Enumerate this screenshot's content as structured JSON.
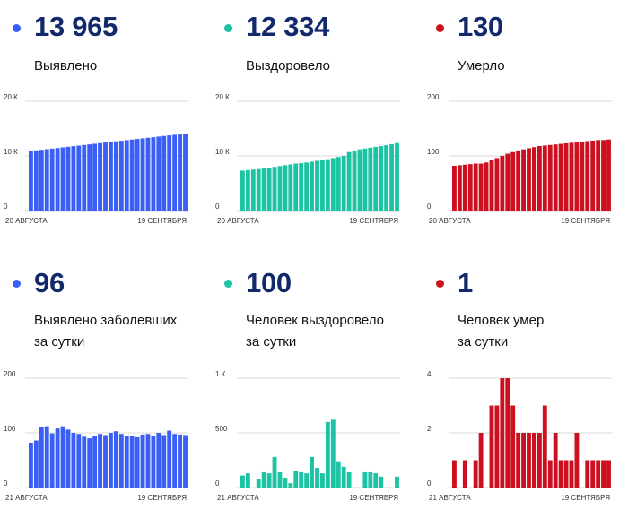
{
  "panels": [
    {
      "value": "13 965",
      "label": [
        "Выявлено"
      ],
      "color": "#3b5ff5",
      "chart_data": {
        "type": "bar",
        "x_start_label": "20 АВГУСТА",
        "x_end_label": "19 СЕНТЯБРЯ",
        "ylim": [
          0,
          20000
        ],
        "yticks": [
          {
            "v": 0,
            "t": "0"
          },
          {
            "v": 10000,
            "t": "10 К"
          },
          {
            "v": 20000,
            "t": "20 К"
          }
        ],
        "values": [
          10900,
          11010,
          11120,
          11230,
          11340,
          11450,
          11560,
          11670,
          11780,
          11890,
          12000,
          12110,
          12220,
          12330,
          12440,
          12550,
          12660,
          12770,
          12880,
          12990,
          13100,
          13210,
          13320,
          13430,
          13540,
          13650,
          13760,
          13860,
          13920,
          13965
        ]
      }
    },
    {
      "value": "12 334",
      "label": [
        "Выздоровело"
      ],
      "color": "#1cc4a4",
      "chart_data": {
        "type": "bar",
        "x_start_label": "20 АВГУСТА",
        "x_end_label": "19 СЕНТЯБРЯ",
        "ylim": [
          0,
          20000
        ],
        "yticks": [
          {
            "v": 0,
            "t": "0"
          },
          {
            "v": 10000,
            "t": "10 К"
          },
          {
            "v": 20000,
            "t": "20 К"
          }
        ],
        "values": [
          7300,
          7400,
          7500,
          7600,
          7700,
          7850,
          8000,
          8150,
          8300,
          8450,
          8600,
          8700,
          8800,
          8950,
          9100,
          9250,
          9400,
          9600,
          9800,
          10000,
          10700,
          11000,
          11200,
          11350,
          11500,
          11650,
          11800,
          11950,
          12150,
          12334
        ]
      }
    },
    {
      "value": "130",
      "label": [
        "Умерло"
      ],
      "color": "#cc1020",
      "chart_data": {
        "type": "bar",
        "x_start_label": "20 АВГУСТА",
        "x_end_label": "19 СЕНТЯБРЯ",
        "ylim": [
          0,
          200
        ],
        "yticks": [
          {
            "v": 0,
            "t": "0"
          },
          {
            "v": 100,
            "t": "100"
          },
          {
            "v": 200,
            "t": "200"
          }
        ],
        "values": [
          82,
          83,
          84,
          85,
          86,
          86,
          88,
          92,
          96,
          100,
          104,
          107,
          110,
          112,
          114,
          116,
          118,
          119,
          120,
          121,
          122,
          123,
          124,
          125,
          126,
          127,
          128,
          129,
          129,
          130
        ]
      }
    },
    {
      "value": "96",
      "label": [
        "Выявлено заболевших",
        "за сутки"
      ],
      "color": "#3b5ff5",
      "chart_data": {
        "type": "bar",
        "x_start_label": "21 АВГУСТА",
        "x_end_label": "19 СЕНТЯБРЯ",
        "ylim": [
          0,
          200
        ],
        "yticks": [
          {
            "v": 0,
            "t": "0"
          },
          {
            "v": 100,
            "t": "100"
          },
          {
            "v": 200,
            "t": "200"
          }
        ],
        "values": [
          82,
          86,
          110,
          112,
          99,
          108,
          112,
          106,
          100,
          98,
          93,
          90,
          94,
          98,
          96,
          100,
          103,
          98,
          95,
          94,
          92,
          97,
          98,
          95,
          100,
          96,
          104,
          98,
          97,
          96
        ]
      }
    },
    {
      "value": "100",
      "label": [
        "Человек выздоровело",
        "за сутки"
      ],
      "color": "#1cc4a4",
      "chart_data": {
        "type": "bar",
        "x_start_label": "21 АВГУСТА",
        "x_end_label": "19 СЕНТЯБРЯ",
        "ylim": [
          0,
          1000
        ],
        "yticks": [
          {
            "v": 0,
            "t": "0"
          },
          {
            "v": 500,
            "t": "500"
          },
          {
            "v": 1000,
            "t": "1 К"
          }
        ],
        "values": [
          110,
          130,
          0,
          80,
          140,
          130,
          280,
          140,
          90,
          40,
          150,
          140,
          130,
          280,
          180,
          130,
          600,
          620,
          240,
          190,
          140,
          0,
          0,
          140,
          140,
          130,
          100,
          0,
          0,
          100
        ]
      }
    },
    {
      "value": "1",
      "label": [
        "Человек умер",
        "за сутки"
      ],
      "color": "#cc1020",
      "chart_data": {
        "type": "bar",
        "x_start_label": "21 АВГУСТА",
        "x_end_label": "19 СЕНТЯБРЯ",
        "ylim": [
          0,
          4
        ],
        "yticks": [
          {
            "v": 0,
            "t": "0"
          },
          {
            "v": 2,
            "t": "2"
          },
          {
            "v": 4,
            "t": "4"
          }
        ],
        "values": [
          1,
          0,
          1,
          0,
          1,
          2,
          0,
          3,
          3,
          4,
          4,
          3,
          2,
          2,
          2,
          2,
          2,
          3,
          1,
          2,
          1,
          1,
          1,
          2,
          0,
          1,
          1,
          1,
          1,
          1
        ]
      }
    }
  ]
}
